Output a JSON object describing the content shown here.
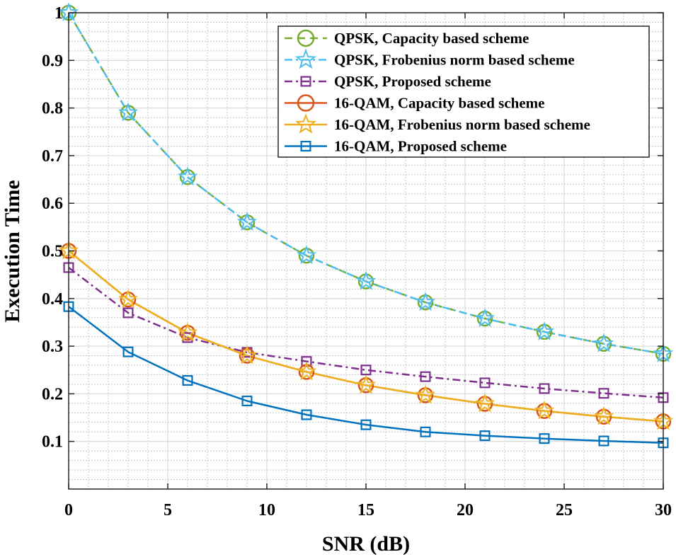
{
  "chart_data": {
    "type": "line",
    "title": "",
    "xlabel": "SNR (dB)",
    "ylabel": "Execution Time",
    "xlim": [
      0,
      30
    ],
    "ylim": [
      0,
      1
    ],
    "xticks": [
      0,
      5,
      10,
      15,
      20,
      25,
      30
    ],
    "yticks": [
      0.1,
      0.2,
      0.3,
      0.4,
      0.5,
      0.6,
      0.7,
      0.8,
      0.9,
      1
    ],
    "grid": true,
    "legend_position": "top-right",
    "x": [
      0,
      3,
      6,
      9,
      12,
      15,
      18,
      21,
      24,
      27,
      30
    ],
    "series": [
      {
        "name": "QPSK, Capacity based scheme",
        "color": "#77AC30",
        "line_style": "dashed",
        "marker": "circle",
        "values": [
          1.0,
          0.79,
          0.655,
          0.56,
          0.49,
          0.436,
          0.392,
          0.358,
          0.33,
          0.305,
          0.284
        ]
      },
      {
        "name": "QPSK, Frobenius norm based scheme",
        "color": "#4DBEEE",
        "line_style": "dashdot",
        "marker": "star",
        "values": [
          1.0,
          0.79,
          0.655,
          0.56,
          0.49,
          0.436,
          0.392,
          0.358,
          0.33,
          0.305,
          0.284
        ]
      },
      {
        "name": "QPSK, Proposed scheme",
        "color": "#7E2F8E",
        "line_style": "dashdot",
        "marker": "square",
        "values": [
          0.465,
          0.37,
          0.318,
          0.287,
          0.268,
          0.25,
          0.236,
          0.223,
          0.211,
          0.201,
          0.192
        ]
      },
      {
        "name": "16-QAM, Capacity based scheme",
        "color": "#D95319",
        "line_style": "solid",
        "marker": "circle",
        "values": [
          0.5,
          0.398,
          0.328,
          0.28,
          0.246,
          0.218,
          0.197,
          0.179,
          0.164,
          0.152,
          0.142
        ]
      },
      {
        "name": "16-QAM, Frobenius norm based scheme",
        "color": "#EDB120",
        "line_style": "solid",
        "marker": "star",
        "values": [
          0.5,
          0.398,
          0.328,
          0.28,
          0.246,
          0.218,
          0.197,
          0.179,
          0.164,
          0.152,
          0.142
        ]
      },
      {
        "name": "16-QAM, Proposed scheme",
        "color": "#0072BD",
        "line_style": "solid",
        "marker": "square",
        "values": [
          0.383,
          0.288,
          0.228,
          0.185,
          0.156,
          0.135,
          0.12,
          0.112,
          0.106,
          0.101,
          0.097
        ]
      }
    ]
  }
}
